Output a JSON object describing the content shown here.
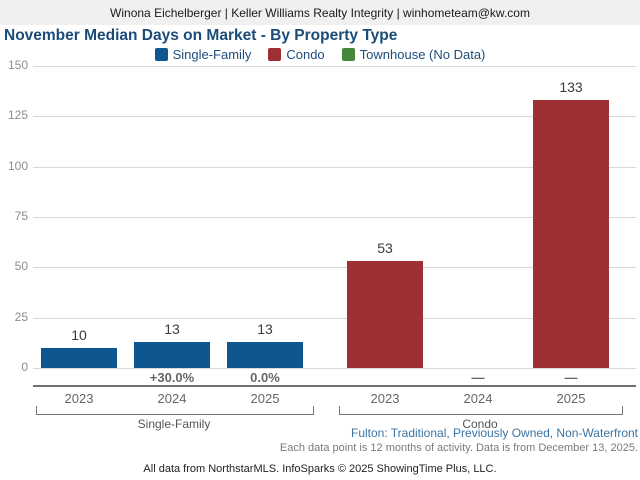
{
  "header": {
    "agent_info": "Winona Eichelberger | Keller Williams Realty Integrity | winhometeam@kw.com"
  },
  "title": "November Median Days on Market - By Property Type",
  "legend": {
    "items": [
      {
        "label": "Single-Family",
        "color": "#0d5690"
      },
      {
        "label": "Condo",
        "color": "#9e2f33"
      },
      {
        "label": "Townhouse (No Data)",
        "color": "#47873b"
      }
    ]
  },
  "chart_data": {
    "type": "bar",
    "title": "November Median Days on Market - By Property Type",
    "categories": [
      "2023",
      "2024",
      "2025"
    ],
    "series": [
      {
        "name": "Single-Family",
        "color": "#0d5690",
        "values": [
          10,
          13,
          13
        ],
        "pct_change": [
          null,
          "+30.0%",
          "0.0%"
        ]
      },
      {
        "name": "Condo",
        "color": "#9e2f33",
        "values": [
          53,
          null,
          133
        ],
        "pct_change": [
          null,
          "—",
          "—"
        ]
      },
      {
        "name": "Townhouse (No Data)",
        "color": "#47873b",
        "values": [
          null,
          null,
          null
        ],
        "pct_change": [
          null,
          null,
          null
        ]
      }
    ],
    "xlabel": "",
    "ylabel": "",
    "ylim": [
      0,
      150
    ],
    "yticks": [
      0,
      25,
      50,
      75,
      100,
      125,
      150
    ],
    "grid": true,
    "legend_position": "top"
  },
  "colors": {
    "title_navy": "#1b4b78",
    "link_blue": "#3a74a3",
    "bar_blue": "#0d5690",
    "bar_red": "#9e2f33",
    "legend_green": "#47873b"
  },
  "footnotes": {
    "filter": "Fulton: Traditional, Previously Owned, Non-Waterfront",
    "data_note": "Each data point is 12 months of activity. Data is from December 13, 2025.",
    "attribution": "All data from NorthstarMLS. InfoSparks © 2025 ShowingTime Plus, LLC."
  }
}
